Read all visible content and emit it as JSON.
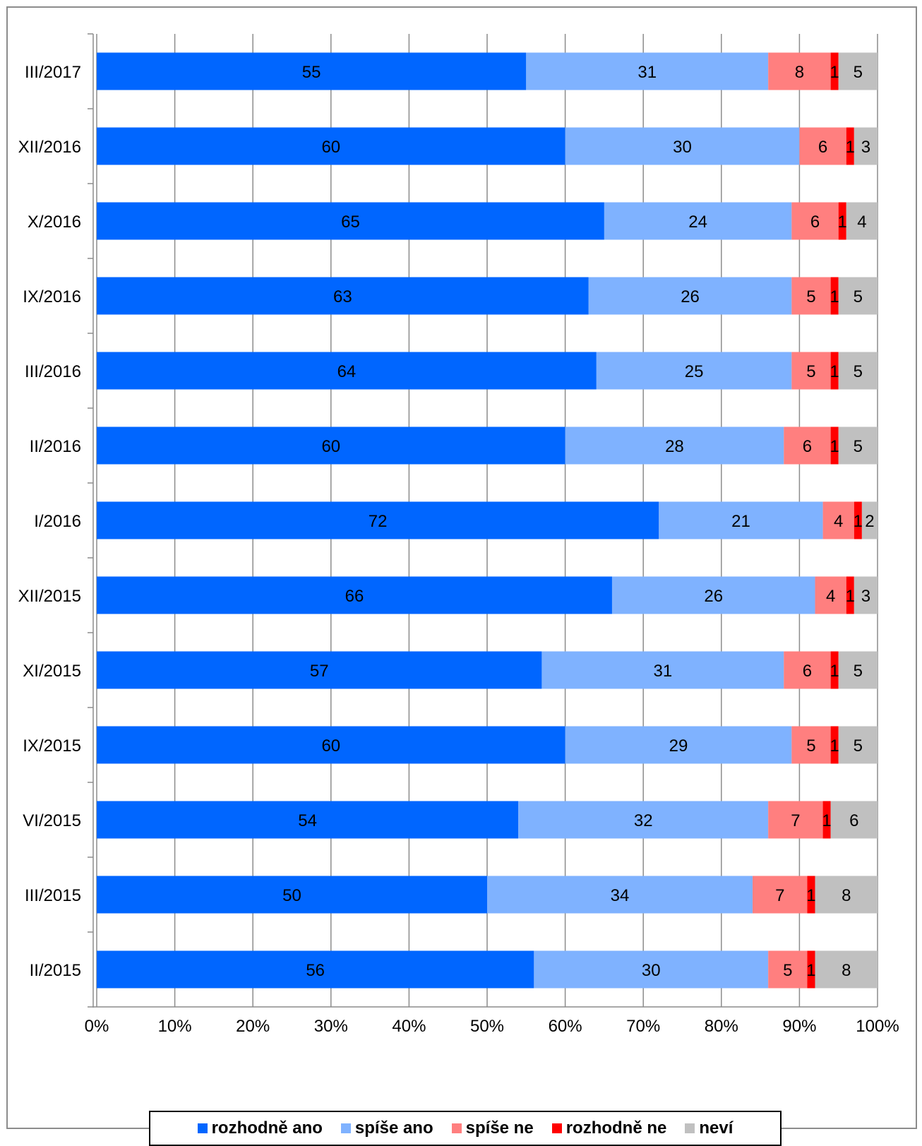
{
  "chart_data": {
    "type": "bar",
    "orientation": "horizontal",
    "stacked": "percent",
    "title": "",
    "xlabel": "",
    "ylabel": "",
    "xlim": [
      0,
      100
    ],
    "x_ticks": [
      "0%",
      "10%",
      "20%",
      "30%",
      "40%",
      "50%",
      "60%",
      "70%",
      "80%",
      "90%",
      "100%"
    ],
    "grid": true,
    "legend_position": "bottom",
    "categories": [
      "III/2017",
      "XII/2016",
      "X/2016",
      "IX/2016",
      "III/2016",
      "II/2016",
      "I/2016",
      "XII/2015",
      "XI/2015",
      "IX/2015",
      "VI/2015",
      "III/2015",
      "II/2015"
    ],
    "series": [
      {
        "name": "rozhodně ano",
        "color": "#0066ff",
        "values": [
          55,
          60,
          65,
          63,
          64,
          60,
          72,
          66,
          57,
          60,
          54,
          50,
          56
        ]
      },
      {
        "name": "spíše ano",
        "color": "#7fb2ff",
        "values": [
          31,
          30,
          24,
          26,
          25,
          28,
          21,
          26,
          31,
          29,
          32,
          34,
          30
        ]
      },
      {
        "name": "spíše ne",
        "color": "#ff7f7f",
        "values": [
          8,
          6,
          6,
          5,
          5,
          6,
          4,
          4,
          6,
          5,
          7,
          7,
          5
        ]
      },
      {
        "name": "rozhodně ne",
        "color": "#ff0000",
        "values": [
          1,
          1,
          1,
          1,
          1,
          1,
          1,
          1,
          1,
          1,
          1,
          1,
          1
        ]
      },
      {
        "name": "neví",
        "color": "#c0c0c0",
        "values": [
          5,
          3,
          4,
          5,
          5,
          5,
          2,
          3,
          5,
          5,
          6,
          8,
          8
        ]
      }
    ]
  }
}
